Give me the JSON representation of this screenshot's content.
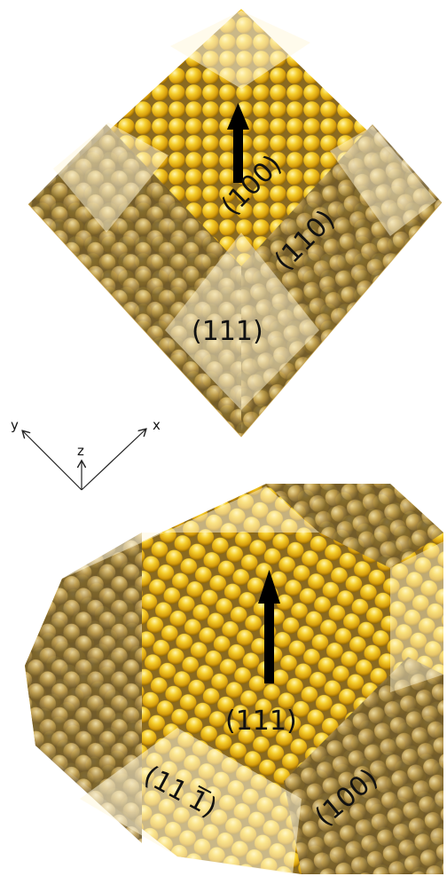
{
  "figure": {
    "top": {
      "labels": {
        "f100": "(100)",
        "f110": "(110)",
        "f111": "(111)"
      }
    },
    "axes": {
      "x": "x",
      "y": "y",
      "z": "z"
    },
    "bottom": {
      "labels": {
        "f111": "(111)",
        "f111bar": "(11",
        "f111bar_one": "1",
        "f111bar_close": ")",
        "f100": "(100)"
      }
    },
    "colors": {
      "atom_highlight": "#fff6b0",
      "atom_mid": "#f2c21c",
      "atom_shadow": "#9a6e06",
      "atom_dim": "#9c8a5a",
      "facet_overlay": "#fff8dc",
      "arrow": "#000000",
      "background": "#ffffff"
    }
  }
}
